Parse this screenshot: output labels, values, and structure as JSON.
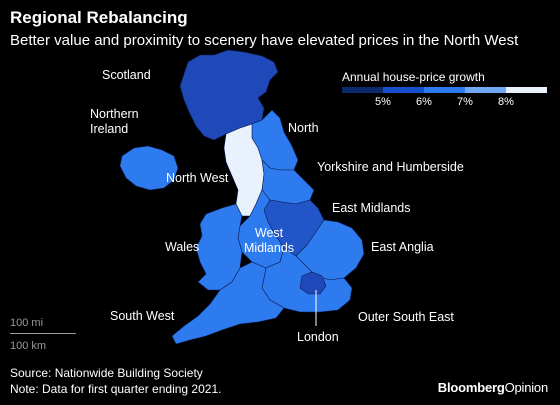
{
  "header": {
    "title": "Regional Rebalancing",
    "subtitle": "Better value and proximity to scenery have elevated prices in the North West"
  },
  "legend": {
    "title": "Annual house-price growth",
    "ticks": [
      "5%",
      "6%",
      "7%",
      "8%"
    ],
    "colors": [
      "#0a2a6b",
      "#1650cf",
      "#2e7bf0",
      "#6fa8f5",
      "#e8f1fc"
    ]
  },
  "regions": [
    {
      "name": "Scotland",
      "label": "Scotland",
      "color": "#1f48b8"
    },
    {
      "name": "Northern Ireland",
      "label": "Northern\nIreland",
      "color": "#2e7bf0"
    },
    {
      "name": "North",
      "label": "North",
      "color": "#2e7bf0"
    },
    {
      "name": "North West",
      "label": "North West",
      "color": "#e8f1fc"
    },
    {
      "name": "Yorkshire and Humberside",
      "label": "Yorkshire and Humberside",
      "color": "#2e7bf0"
    },
    {
      "name": "East Midlands",
      "label": "East Midlands",
      "color": "#2155c8"
    },
    {
      "name": "West Midlands",
      "label": "West\nMidlands",
      "color": "#2e7bf0"
    },
    {
      "name": "Wales",
      "label": "Wales",
      "color": "#2e7bf0"
    },
    {
      "name": "East Anglia",
      "label": "East Anglia",
      "color": "#2e7bf0"
    },
    {
      "name": "South West",
      "label": "South West",
      "color": "#2e7bf0"
    },
    {
      "name": "Outer South East",
      "label": "Outer South East",
      "color": "#2e7bf0"
    },
    {
      "name": "London",
      "label": "London",
      "color": "#1f48b8"
    }
  ],
  "scale": {
    "miles": "100 mi",
    "km": "100 km"
  },
  "footer": {
    "source": "Source: Nationwide Building Society",
    "note": "Note: Data for first quarter ending 2021."
  },
  "brand": {
    "bold": "Bloomberg",
    "regular": "Opinion"
  }
}
